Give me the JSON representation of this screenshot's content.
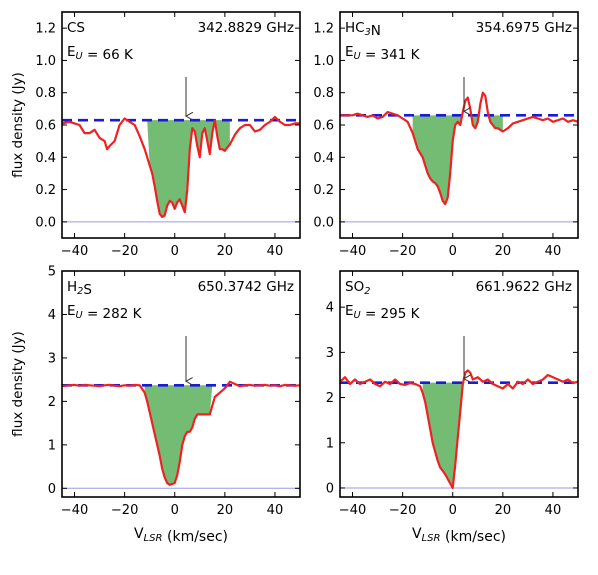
{
  "chart_data": [
    {
      "type": "line",
      "molecule": "CS",
      "frequency_label": "342.8829 GHz",
      "energy_label": "E",
      "energy_sub": "U",
      "energy_value": " = 66 K",
      "ylabel": "flux density (Jy)",
      "xlabel": "",
      "xlim": [
        -45,
        50
      ],
      "ylim": [
        -0.1,
        1.3
      ],
      "xticks": [
        -40,
        -20,
        0,
        20,
        40
      ],
      "yticks": [
        0.0,
        0.2,
        0.4,
        0.6,
        0.8,
        1.0,
        1.2
      ],
      "ytick_labels": [
        "0.0",
        "0.2",
        "0.4",
        "0.6",
        "0.8",
        "1.0",
        "1.2"
      ],
      "continuum": 0.63,
      "arrow_x": 4.5,
      "fill_range": [
        -11,
        22
      ],
      "series": [
        {
          "x": [
            -45,
            -42,
            -40,
            -38,
            -36,
            -34,
            -32,
            -30,
            -28,
            -27,
            -26,
            -24,
            -22,
            -20,
            -18,
            -16,
            -14,
            -12,
            -10,
            -9,
            -8,
            -7,
            -6,
            -5,
            -4,
            -3,
            -2,
            -1,
            0,
            1,
            2,
            3,
            4,
            5,
            6,
            7,
            8,
            9,
            10,
            11,
            12,
            13,
            14,
            15,
            16,
            17,
            18,
            19,
            20,
            21,
            22,
            24,
            26,
            28,
            30,
            32,
            34,
            36,
            38,
            40,
            42,
            44,
            46,
            48,
            50
          ],
          "y": [
            0.61,
            0.62,
            0.61,
            0.6,
            0.55,
            0.55,
            0.57,
            0.52,
            0.5,
            0.45,
            0.47,
            0.5,
            0.6,
            0.64,
            0.62,
            0.6,
            0.53,
            0.45,
            0.35,
            0.3,
            0.22,
            0.13,
            0.05,
            0.03,
            0.04,
            0.1,
            0.13,
            0.12,
            0.08,
            0.12,
            0.14,
            0.1,
            0.06,
            0.2,
            0.45,
            0.58,
            0.56,
            0.47,
            0.4,
            0.55,
            0.58,
            0.5,
            0.42,
            0.55,
            0.63,
            0.53,
            0.45,
            0.45,
            0.44,
            0.46,
            0.48,
            0.54,
            0.58,
            0.6,
            0.6,
            0.56,
            0.57,
            0.6,
            0.62,
            0.65,
            0.62,
            0.6,
            0.6,
            0.61,
            0.61
          ]
        }
      ]
    },
    {
      "type": "line",
      "molecule": "HC",
      "molecule_sub": "3",
      "molecule_tail": "N",
      "frequency_label": "354.6975 GHz",
      "energy_label": "E",
      "energy_sub": "U",
      "energy_value": " = 341 K",
      "ylabel": "",
      "xlabel": "",
      "xlim": [
        -45,
        50
      ],
      "ylim": [
        -0.1,
        1.3
      ],
      "xticks": [
        -40,
        -20,
        0,
        20,
        40
      ],
      "yticks": [
        0.0,
        0.2,
        0.4,
        0.6,
        0.8,
        1.0,
        1.2
      ],
      "ytick_labels": [
        "0.0",
        "0.2",
        "0.4",
        "0.6",
        "0.8",
        "1.0",
        "1.2"
      ],
      "continuum": 0.66,
      "arrow_x": 4.5,
      "fill_range": [
        -16,
        20
      ],
      "series": [
        {
          "x": [
            -45,
            -42,
            -40,
            -38,
            -36,
            -34,
            -32,
            -30,
            -28,
            -26,
            -24,
            -22,
            -20,
            -18,
            -16,
            -14,
            -12,
            -11,
            -10,
            -9,
            -8,
            -7,
            -6,
            -5,
            -4,
            -3,
            -2,
            -1,
            0,
            1,
            2,
            3,
            4,
            5,
            6,
            7,
            8,
            9,
            10,
            11,
            12,
            13,
            14,
            15,
            16,
            17,
            18,
            20,
            22,
            24,
            26,
            28,
            30,
            32,
            34,
            36,
            38,
            40,
            42,
            44,
            46,
            48,
            50
          ],
          "y": [
            0.66,
            0.66,
            0.66,
            0.67,
            0.66,
            0.65,
            0.66,
            0.64,
            0.65,
            0.68,
            0.67,
            0.66,
            0.64,
            0.62,
            0.55,
            0.45,
            0.4,
            0.35,
            0.3,
            0.27,
            0.25,
            0.24,
            0.22,
            0.18,
            0.13,
            0.11,
            0.15,
            0.3,
            0.5,
            0.6,
            0.62,
            0.6,
            0.68,
            0.75,
            0.77,
            0.7,
            0.6,
            0.58,
            0.62,
            0.73,
            0.8,
            0.78,
            0.68,
            0.62,
            0.6,
            0.58,
            0.58,
            0.56,
            0.58,
            0.61,
            0.62,
            0.63,
            0.64,
            0.65,
            0.64,
            0.63,
            0.64,
            0.62,
            0.63,
            0.64,
            0.62,
            0.63,
            0.62
          ]
        }
      ]
    },
    {
      "type": "line",
      "molecule": "H",
      "molecule_sub": "2",
      "molecule_tail": "S",
      "frequency_label": "650.3742 GHz",
      "energy_label": "E",
      "energy_sub": "U",
      "energy_value": " = 282 K",
      "ylabel": "flux density (Jy)",
      "xlabel": "V",
      "xlabel_sub": "LSR",
      "xlabel_tail": " (km/sec)",
      "xlim": [
        -45,
        50
      ],
      "ylim": [
        -0.2,
        5.0
      ],
      "xticks": [
        -40,
        -20,
        0,
        20,
        40
      ],
      "yticks": [
        0,
        1,
        2,
        3,
        4,
        5
      ],
      "ytick_labels": [
        "0",
        "1",
        "2",
        "3",
        "4",
        "5"
      ],
      "continuum": 2.37,
      "arrow_x": 4.5,
      "fill_range": [
        -12,
        15
      ],
      "series": [
        {
          "x": [
            -45,
            -42,
            -40,
            -38,
            -36,
            -34,
            -32,
            -30,
            -28,
            -26,
            -24,
            -22,
            -20,
            -18,
            -16,
            -14,
            -12,
            -11,
            -10,
            -9,
            -8,
            -7,
            -6,
            -5,
            -4,
            -3,
            -2,
            -1,
            0,
            1,
            2,
            3,
            4,
            5,
            6,
            7,
            8,
            9,
            10,
            12,
            14,
            16,
            18,
            20,
            22,
            24,
            26,
            28,
            30,
            32,
            34,
            36,
            38,
            40,
            42,
            44,
            46,
            48,
            50
          ],
          "y": [
            2.35,
            2.37,
            2.38,
            2.36,
            2.38,
            2.37,
            2.36,
            2.35,
            2.37,
            2.38,
            2.36,
            2.35,
            2.37,
            2.36,
            2.38,
            2.37,
            2.2,
            2.0,
            1.75,
            1.5,
            1.25,
            1.0,
            0.75,
            0.45,
            0.25,
            0.12,
            0.08,
            0.1,
            0.12,
            0.3,
            0.6,
            1.0,
            1.2,
            1.3,
            1.3,
            1.4,
            1.6,
            1.7,
            1.7,
            1.7,
            1.7,
            2.1,
            2.2,
            2.3,
            2.45,
            2.4,
            2.35,
            2.37,
            2.38,
            2.36,
            2.37,
            2.38,
            2.36,
            2.37,
            2.35,
            2.38,
            2.37,
            2.36,
            2.37
          ]
        }
      ]
    },
    {
      "type": "line",
      "molecule": "SO",
      "molecule_sub": "2",
      "molecule_tail": "",
      "frequency_label": "661.9622 GHz",
      "energy_label": "E",
      "energy_sub": "U",
      "energy_value": " = 295 K",
      "ylabel": "",
      "xlabel": "V",
      "xlabel_sub": "LSR",
      "xlabel_tail": " (km/sec)",
      "xlim": [
        -45,
        50
      ],
      "ylim": [
        -0.2,
        4.8
      ],
      "xticks": [
        -40,
        -20,
        0,
        20,
        40
      ],
      "yticks": [
        0,
        1,
        2,
        3,
        4
      ],
      "ytick_labels": [
        "0",
        "1",
        "2",
        "3",
        "4"
      ],
      "continuum": 2.33,
      "arrow_x": 4.5,
      "fill_range": [
        -12,
        5
      ],
      "series": [
        {
          "x": [
            -45,
            -43,
            -41,
            -39,
            -37,
            -35,
            -33,
            -31,
            -29,
            -27,
            -25,
            -23,
            -21,
            -19,
            -17,
            -15,
            -13,
            -12,
            -11,
            -10,
            -9,
            -8,
            -7,
            -6,
            -5,
            -4,
            -3,
            -2,
            -1,
            0,
            1,
            2,
            3,
            4,
            5,
            6,
            7,
            8,
            10,
            12,
            14,
            16,
            18,
            20,
            22,
            24,
            26,
            28,
            30,
            32,
            34,
            36,
            38,
            40,
            42,
            44,
            46,
            48,
            50
          ],
          "y": [
            2.35,
            2.45,
            2.3,
            2.4,
            2.3,
            2.35,
            2.4,
            2.3,
            2.25,
            2.35,
            2.3,
            2.4,
            2.3,
            2.28,
            2.32,
            2.3,
            2.25,
            2.1,
            1.9,
            1.6,
            1.3,
            1.0,
            0.8,
            0.6,
            0.45,
            0.38,
            0.3,
            0.2,
            0.1,
            0.0,
            0.5,
            1.1,
            1.7,
            2.3,
            2.55,
            2.6,
            2.55,
            2.4,
            2.45,
            2.35,
            2.4,
            2.3,
            2.25,
            2.2,
            2.3,
            2.2,
            2.35,
            2.3,
            2.4,
            2.3,
            2.35,
            2.4,
            2.5,
            2.45,
            2.4,
            2.35,
            2.4,
            2.32,
            2.35
          ]
        }
      ]
    }
  ],
  "colors": {
    "spectrum": "#ee2222",
    "continuum": "#1a1adc",
    "fill": "#74bb74",
    "baseline": "#9a9aee",
    "frame": "#000000",
    "arrow": "#333333"
  }
}
